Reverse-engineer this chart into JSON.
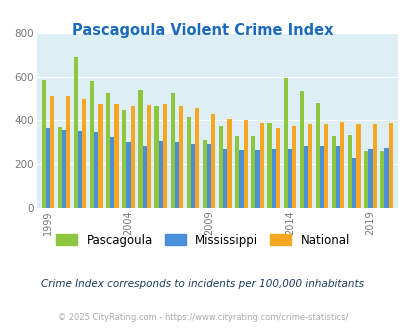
{
  "title": "Pascagoula Violent Crime Index",
  "title_color": "#1a6bbf",
  "years": [
    1999,
    2000,
    2001,
    2002,
    2003,
    2004,
    2005,
    2006,
    2007,
    2008,
    2009,
    2010,
    2011,
    2012,
    2013,
    2014,
    2015,
    2016,
    2017,
    2018,
    2019,
    2020
  ],
  "pascagoula": [
    585,
    370,
    690,
    580,
    525,
    450,
    540,
    465,
    525,
    415,
    310,
    375,
    330,
    330,
    390,
    595,
    535,
    480,
    330,
    335,
    260,
    260
  ],
  "mississippi": [
    365,
    355,
    350,
    345,
    325,
    300,
    285,
    305,
    300,
    290,
    290,
    270,
    265,
    265,
    270,
    270,
    285,
    285,
    285,
    230,
    270,
    275
  ],
  "national": [
    510,
    510,
    500,
    475,
    475,
    465,
    470,
    475,
    465,
    455,
    430,
    405,
    400,
    390,
    365,
    375,
    385,
    385,
    395,
    385,
    385,
    390
  ],
  "bar_colors": {
    "pascagoula": "#8dc63f",
    "mississippi": "#4a90d9",
    "national": "#f5a623"
  },
  "bg_color": "#ddeef5",
  "ylim": [
    0,
    800
  ],
  "yticks": [
    0,
    200,
    400,
    600,
    800
  ],
  "xtick_years": [
    1999,
    2004,
    2009,
    2014,
    2019
  ],
  "legend_labels": [
    "Pascagoula",
    "Mississippi",
    "National"
  ],
  "note": "Crime Index corresponds to incidents per 100,000 inhabitants",
  "footer": "© 2025 CityRating.com - https://www.cityrating.com/crime-statistics/",
  "note_color": "#1a3a5c",
  "footer_color": "#aaaaaa",
  "bar_width": 0.26
}
